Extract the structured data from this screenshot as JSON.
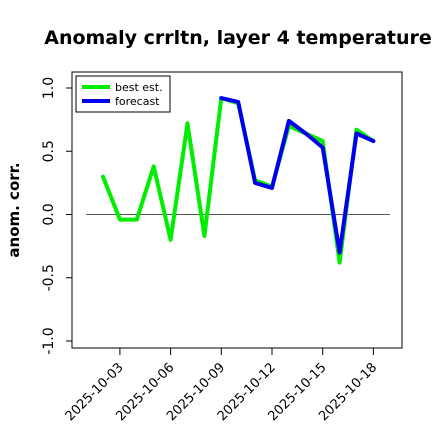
{
  "chart_data": {
    "type": "line",
    "title": "Anomaly crrltn, layer 4 temperature",
    "xlabel": "",
    "ylabel": "anom. corr.",
    "ylim": [
      -1.0,
      1.0
    ],
    "yticks": [
      "-1.0",
      "-0.5",
      "0.0",
      "0.5",
      "1.0"
    ],
    "ytick_values": [
      -1.0,
      -0.5,
      0.0,
      0.5,
      1.0
    ],
    "x": [
      "2025-10-02",
      "2025-10-03",
      "2025-10-04",
      "2025-10-05",
      "2025-10-06",
      "2025-10-07",
      "2025-10-08",
      "2025-10-09",
      "2025-10-10",
      "2025-10-11",
      "2025-10-12",
      "2025-10-13",
      "2025-10-14",
      "2025-10-15",
      "2025-10-16",
      "2025-10-17",
      "2025-10-18"
    ],
    "xticks": [
      "2025-10-03",
      "2025-10-06",
      "2025-10-09",
      "2025-10-12",
      "2025-10-15",
      "2025-10-18"
    ],
    "xtick_positions": [
      1,
      4,
      7,
      10,
      13,
      16
    ],
    "highlight_tick": "2025-10-09",
    "highlight_color": "#228B22",
    "reference_line": 0.0,
    "legend_position": "top-left",
    "series": [
      {
        "name": "best est.",
        "color": "#00EE00",
        "values": [
          0.3,
          -0.04,
          -0.04,
          0.38,
          -0.2,
          0.72,
          -0.17,
          0.92,
          0.88,
          0.27,
          0.22,
          0.7,
          0.64,
          0.58,
          -0.38,
          0.67,
          0.58
        ]
      },
      {
        "name": "forecast",
        "color": "#0000EE",
        "values": [
          null,
          null,
          null,
          null,
          null,
          null,
          null,
          0.92,
          0.89,
          0.25,
          0.21,
          0.74,
          0.64,
          0.53,
          -0.3,
          0.64,
          0.58
        ]
      }
    ]
  }
}
